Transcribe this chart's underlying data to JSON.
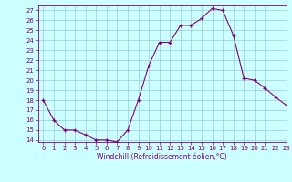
{
  "x": [
    0,
    1,
    2,
    3,
    4,
    5,
    6,
    7,
    8,
    9,
    10,
    11,
    12,
    13,
    14,
    15,
    16,
    17,
    18,
    19,
    20,
    21,
    22,
    23
  ],
  "y": [
    18,
    16,
    15,
    15,
    14.5,
    14,
    14,
    13.8,
    15,
    18,
    21.5,
    23.8,
    23.8,
    25.5,
    25.5,
    26.2,
    27.2,
    27,
    24.5,
    20.2,
    20,
    19.2,
    18.3,
    17.5
  ],
  "line_color": "#800080",
  "marker": "+",
  "marker_color": "#800080",
  "bg_color": "#ccffff",
  "grid_color": "#99cccc",
  "xlabel": "Windchill (Refroidissement éolien,°C)",
  "ylim_min": 13.8,
  "ylim_max": 27.5,
  "xlim_min": -0.5,
  "xlim_max": 23,
  "yticks": [
    14,
    15,
    16,
    17,
    18,
    19,
    20,
    21,
    22,
    23,
    24,
    25,
    26,
    27
  ],
  "xticks": [
    0,
    1,
    2,
    3,
    4,
    5,
    6,
    7,
    8,
    9,
    10,
    11,
    12,
    13,
    14,
    15,
    16,
    17,
    18,
    19,
    20,
    21,
    22,
    23
  ],
  "axis_color": "#800080",
  "tick_color": "#800080",
  "tick_fontsize": 5.0,
  "xlabel_fontsize": 5.5
}
